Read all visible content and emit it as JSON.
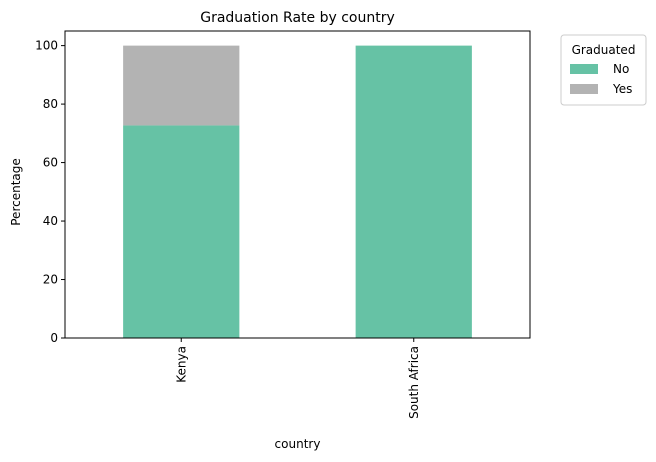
{
  "chart_data": {
    "type": "bar",
    "stacked": true,
    "title": "Graduation Rate by country",
    "xlabel": "country",
    "ylabel": "Percentage",
    "categories": [
      "Kenya",
      "South Africa"
    ],
    "series": [
      {
        "name": "No",
        "values": [
          72.7,
          100.0
        ],
        "color": "#66c2a5"
      },
      {
        "name": "Yes",
        "values": [
          27.3,
          0.0
        ],
        "color": "#b3b3b3"
      }
    ],
    "ylim": [
      0,
      105
    ],
    "yticks": [
      0,
      20,
      40,
      60,
      80,
      100
    ],
    "legend": {
      "title": "Graduated",
      "placement": "outside-top-right"
    },
    "grid": false
  }
}
